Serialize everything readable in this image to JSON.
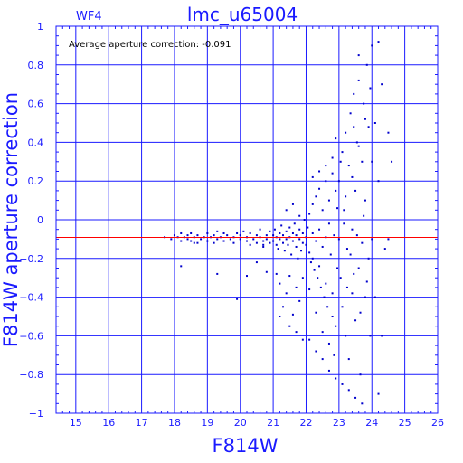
{
  "chart_data": {
    "type": "scatter",
    "title": "lmc_u65004",
    "chip": "WF4",
    "annotation": "Average aperture correction: -0.091",
    "xlabel": "F814W",
    "ylabel": "F814W aperture correction",
    "xlim": [
      14.4,
      26
    ],
    "ylim": [
      -1,
      1
    ],
    "xticks": [
      "15",
      "16",
      "17",
      "18",
      "19",
      "20",
      "21",
      "22",
      "23",
      "24",
      "25",
      "26"
    ],
    "yticks": [
      "1",
      "0.8",
      "0.6",
      "0.4",
      "0.2",
      "0",
      "−0.2",
      "−0.4",
      "−0.6",
      "−0.8",
      "−1"
    ],
    "grid": true,
    "mean_line": -0.091,
    "colors": {
      "axis": "#1a1aff",
      "points": "#0000cc",
      "mean_line": "#ff0000",
      "grid": "#1a1aff"
    },
    "points": [
      [
        17.7,
        -0.09
      ],
      [
        17.9,
        -0.1
      ],
      [
        18.0,
        -0.08
      ],
      [
        18.1,
        -0.09
      ],
      [
        18.2,
        -0.07
      ],
      [
        18.2,
        -0.11
      ],
      [
        18.3,
        -0.09
      ],
      [
        18.4,
        -0.08
      ],
      [
        18.4,
        -0.1
      ],
      [
        18.5,
        -0.07
      ],
      [
        18.5,
        -0.11
      ],
      [
        18.6,
        -0.09
      ],
      [
        18.7,
        -0.08
      ],
      [
        18.7,
        -0.12
      ],
      [
        18.8,
        -0.1
      ],
      [
        18.9,
        -0.09
      ],
      [
        19.0,
        -0.07
      ],
      [
        19.0,
        -0.11
      ],
      [
        19.1,
        -0.09
      ],
      [
        19.2,
        -0.08
      ],
      [
        19.2,
        -0.12
      ],
      [
        19.3,
        -0.1
      ],
      [
        19.4,
        -0.09
      ],
      [
        19.5,
        -0.07
      ],
      [
        19.5,
        -0.11
      ],
      [
        19.6,
        -0.08
      ],
      [
        19.7,
        -0.1
      ],
      [
        19.8,
        -0.09
      ],
      [
        19.8,
        -0.12
      ],
      [
        19.9,
        -0.07
      ],
      [
        18.2,
        -0.24
      ],
      [
        18.6,
        -0.12
      ],
      [
        19.3,
        -0.06
      ],
      [
        20.0,
        -0.08
      ],
      [
        20.0,
        -0.1
      ],
      [
        20.1,
        -0.06
      ],
      [
        20.2,
        -0.11
      ],
      [
        20.2,
        -0.09
      ],
      [
        20.3,
        -0.07
      ],
      [
        20.3,
        -0.13
      ],
      [
        20.4,
        -0.1
      ],
      [
        20.5,
        -0.08
      ],
      [
        20.5,
        -0.12
      ],
      [
        20.6,
        -0.09
      ],
      [
        20.6,
        -0.05
      ],
      [
        20.7,
        -0.11
      ],
      [
        20.7,
        -0.14
      ],
      [
        20.8,
        -0.08
      ],
      [
        20.8,
        -0.1
      ],
      [
        20.9,
        -0.06
      ],
      [
        20.9,
        -0.12
      ],
      [
        20.2,
        -0.29
      ],
      [
        20.5,
        -0.22
      ],
      [
        20.8,
        -0.27
      ],
      [
        19.3,
        -0.28
      ],
      [
        19.9,
        -0.41
      ],
      [
        20.7,
        -0.13
      ],
      [
        21.0,
        -0.08
      ],
      [
        21.0,
        -0.11
      ],
      [
        21.05,
        -0.05
      ],
      [
        21.1,
        -0.13
      ],
      [
        21.1,
        -0.09
      ],
      [
        21.15,
        -0.15
      ],
      [
        21.2,
        -0.07
      ],
      [
        21.2,
        -0.1
      ],
      [
        21.25,
        -0.03
      ],
      [
        21.3,
        -0.12
      ],
      [
        21.3,
        -0.08
      ],
      [
        21.35,
        -0.16
      ],
      [
        21.4,
        -0.06
      ],
      [
        21.4,
        -0.1
      ],
      [
        21.45,
        -0.13
      ],
      [
        21.5,
        -0.04
      ],
      [
        21.5,
        -0.09
      ],
      [
        21.55,
        -0.18
      ],
      [
        21.6,
        -0.07
      ],
      [
        21.6,
        -0.11
      ],
      [
        21.65,
        -0.02
      ],
      [
        21.7,
        -0.14
      ],
      [
        21.7,
        -0.08
      ],
      [
        21.75,
        -0.2
      ],
      [
        21.8,
        -0.05
      ],
      [
        21.8,
        -0.1
      ],
      [
        21.85,
        -0.16
      ],
      [
        21.9,
        -0.07
      ],
      [
        21.9,
        -0.12
      ],
      [
        21.95,
        0.0
      ],
      [
        21.1,
        -0.28
      ],
      [
        21.2,
        -0.33
      ],
      [
        21.3,
        -0.45
      ],
      [
        21.4,
        -0.38
      ],
      [
        21.5,
        -0.29
      ],
      [
        21.6,
        -0.49
      ],
      [
        21.7,
        -0.35
      ],
      [
        21.8,
        -0.42
      ],
      [
        21.9,
        -0.3
      ],
      [
        21.2,
        -0.5
      ],
      [
        21.5,
        -0.55
      ],
      [
        21.7,
        -0.58
      ],
      [
        21.9,
        -0.62
      ],
      [
        21.4,
        0.05
      ],
      [
        21.8,
        0.02
      ],
      [
        21.6,
        0.08
      ],
      [
        22.0,
        -0.09
      ],
      [
        22.0,
        -0.13
      ],
      [
        22.05,
        -0.04
      ],
      [
        22.1,
        -0.17
      ],
      [
        22.1,
        0.03
      ],
      [
        22.15,
        -0.22
      ],
      [
        22.2,
        -0.07
      ],
      [
        22.2,
        0.08
      ],
      [
        22.25,
        -0.26
      ],
      [
        22.3,
        -0.11
      ],
      [
        22.3,
        0.12
      ],
      [
        22.35,
        -0.3
      ],
      [
        22.4,
        -0.05
      ],
      [
        22.4,
        0.16
      ],
      [
        22.45,
        -0.35
      ],
      [
        22.5,
        -0.14
      ],
      [
        22.5,
        0.05
      ],
      [
        22.55,
        -0.4
      ],
      [
        22.6,
        -0.09
      ],
      [
        22.6,
        0.2
      ],
      [
        22.65,
        -0.45
      ],
      [
        22.7,
        -0.02
      ],
      [
        22.7,
        0.1
      ],
      [
        22.75,
        -0.18
      ],
      [
        22.8,
        -0.5
      ],
      [
        22.8,
        0.24
      ],
      [
        22.85,
        -0.08
      ],
      [
        22.9,
        0.15
      ],
      [
        22.9,
        -0.55
      ],
      [
        22.95,
        -0.25
      ],
      [
        22.1,
        -0.62
      ],
      [
        22.3,
        -0.68
      ],
      [
        22.5,
        -0.72
      ],
      [
        22.7,
        -0.78
      ],
      [
        22.9,
        -0.82
      ],
      [
        22.2,
        0.22
      ],
      [
        22.4,
        0.25
      ],
      [
        22.6,
        0.28
      ],
      [
        22.8,
        0.32
      ],
      [
        22.9,
        0.42
      ],
      [
        22.1,
        -0.36
      ],
      [
        22.3,
        -0.48
      ],
      [
        22.5,
        -0.58
      ],
      [
        22.7,
        -0.64
      ],
      [
        22.85,
        -0.7
      ],
      [
        22.2,
        -0.2
      ],
      [
        22.4,
        -0.24
      ],
      [
        22.6,
        -0.33
      ],
      [
        22.8,
        -0.38
      ],
      [
        22.95,
        0.06
      ],
      [
        23.0,
        -0.1
      ],
      [
        23.0,
        0.2
      ],
      [
        23.05,
        -0.3
      ],
      [
        23.1,
        0.35
      ],
      [
        23.1,
        -0.45
      ],
      [
        23.15,
        0.05
      ],
      [
        23.2,
        -0.6
      ],
      [
        23.2,
        0.45
      ],
      [
        23.25,
        -0.15
      ],
      [
        23.3,
        0.28
      ],
      [
        23.3,
        -0.72
      ],
      [
        23.35,
        0.55
      ],
      [
        23.4,
        -0.05
      ],
      [
        23.4,
        -0.38
      ],
      [
        23.45,
        0.65
      ],
      [
        23.5,
        0.15
      ],
      [
        23.5,
        -0.52
      ],
      [
        23.55,
        0.4
      ],
      [
        23.6,
        -0.25
      ],
      [
        23.6,
        0.72
      ],
      [
        23.65,
        -0.8
      ],
      [
        23.7,
        0.3
      ],
      [
        23.7,
        -0.12
      ],
      [
        23.75,
        0.6
      ],
      [
        23.8,
        -0.4
      ],
      [
        23.8,
        0.1
      ],
      [
        23.85,
        0.8
      ],
      [
        23.9,
        -0.2
      ],
      [
        23.9,
        0.48
      ],
      [
        23.95,
        -0.6
      ],
      [
        23.1,
        -0.85
      ],
      [
        23.3,
        -0.88
      ],
      [
        23.5,
        -0.92
      ],
      [
        23.7,
        -0.95
      ],
      [
        23.2,
        0.12
      ],
      [
        23.4,
        0.22
      ],
      [
        23.6,
        0.38
      ],
      [
        23.8,
        0.52
      ],
      [
        23.15,
        -0.02
      ],
      [
        23.35,
        -0.18
      ],
      [
        23.55,
        -0.08
      ],
      [
        23.75,
        0.02
      ],
      [
        23.25,
        -0.35
      ],
      [
        23.45,
        -0.28
      ],
      [
        23.65,
        -0.48
      ],
      [
        23.85,
        -0.32
      ],
      [
        23.05,
        0.3
      ],
      [
        23.45,
        0.48
      ],
      [
        23.95,
        0.68
      ],
      [
        23.6,
        0.85
      ],
      [
        24.0,
        -0.1
      ],
      [
        24.0,
        0.3
      ],
      [
        24.1,
        0.5
      ],
      [
        24.1,
        -0.4
      ],
      [
        24.2,
        0.2
      ],
      [
        24.3,
        0.7
      ],
      [
        24.2,
        -0.9
      ],
      [
        24.4,
        -0.15
      ],
      [
        24.5,
        0.45
      ],
      [
        24.6,
        0.3
      ],
      [
        24.3,
        -0.6
      ],
      [
        24.0,
        0.9
      ],
      [
        24.5,
        -0.1
      ],
      [
        24.2,
        0.92
      ]
    ]
  }
}
